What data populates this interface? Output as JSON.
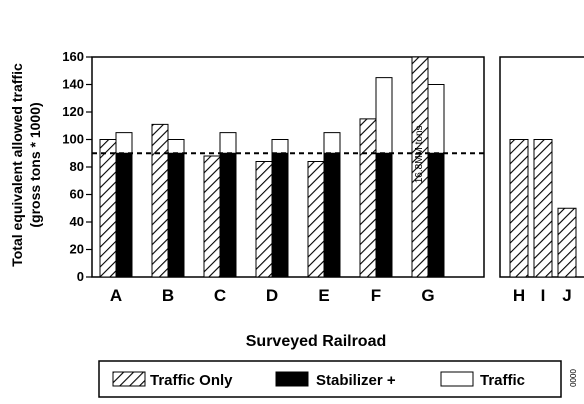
{
  "chart_data": {
    "type": "bar",
    "ylabel_line1": "Total equivalent allowed traffic",
    "ylabel_line2": "(gross tons * 1000)",
    "xlabel": "Surveyed Railroad",
    "ylim": [
      0,
      160
    ],
    "yticks": [
      "0",
      "20",
      "40",
      "60",
      "80",
      "100",
      "120",
      "140",
      "160"
    ],
    "reference_line": 90,
    "annotation": "16.8MM tons",
    "side_text": "0000",
    "legend": [
      {
        "key": "traffic_only",
        "label": "Traffic Only"
      },
      {
        "key": "stabilizer",
        "label": "Stabilizer +"
      },
      {
        "key": "traffic",
        "label": "Traffic"
      }
    ],
    "left_panel": {
      "categories": [
        "A",
        "B",
        "C",
        "D",
        "E",
        "F",
        "G"
      ],
      "traffic_only": [
        100,
        111,
        88,
        84,
        84,
        115,
        160
      ],
      "stabilizer_plus_traffic": [
        105,
        100,
        105,
        100,
        105,
        145,
        140
      ],
      "stabilizer_base": [
        90,
        90,
        90,
        90,
        90,
        90,
        90
      ]
    },
    "right_panel": {
      "categories": [
        "H",
        "I",
        "J"
      ],
      "traffic_only": [
        100,
        100,
        50
      ]
    }
  },
  "colors": {
    "bar_fill": "#000000",
    "background": "#ffffff",
    "hatch": "#000000"
  }
}
